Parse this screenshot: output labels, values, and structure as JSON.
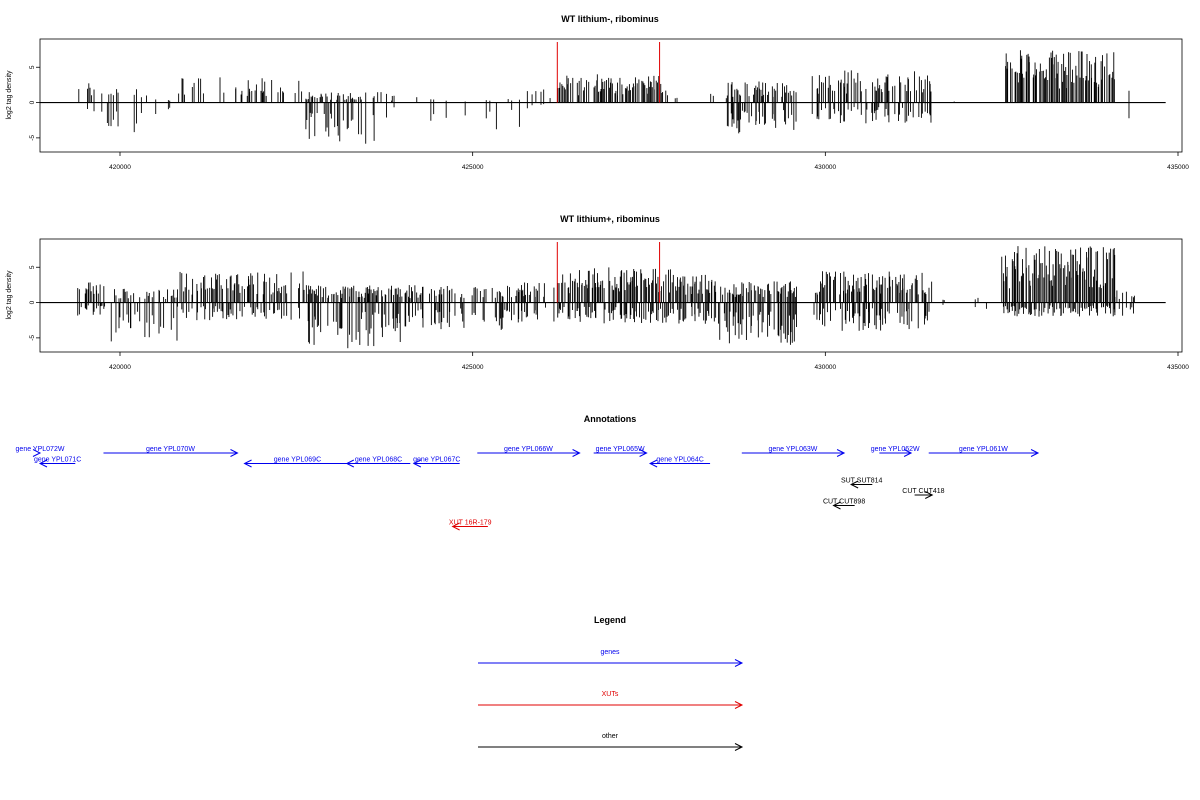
{
  "chart_data": [
    {
      "type": "bar",
      "title": "WT lithium-, ribominus",
      "xlabel": "",
      "ylabel": "log2 tag density",
      "xlim": [
        419400,
        435000
      ],
      "ylim": [
        -7,
        9
      ],
      "xticks": [
        420000,
        425000,
        430000,
        435000
      ],
      "xtick_labels": [
        "420000",
        "425000",
        "430000",
        "435000"
      ],
      "yticks": [
        -5,
        0,
        5
      ],
      "ytick_labels": [
        "-5",
        "0",
        "5"
      ],
      "markers": [
        426200,
        427650
      ],
      "marker_color": "#e00000",
      "bar_color": "#000000",
      "data_extent": [
        419400,
        434400
      ],
      "segments": [
        {
          "x0": 419400,
          "x1": 419800,
          "density": 0.25,
          "pos": 3,
          "neg": 2
        },
        {
          "x0": 419800,
          "x1": 420300,
          "density": 0.35,
          "pos": 2,
          "neg": 4.5
        },
        {
          "x0": 420300,
          "x1": 420800,
          "density": 0.1,
          "pos": 1,
          "neg": 2
        },
        {
          "x0": 420800,
          "x1": 422600,
          "density": 0.3,
          "pos": 3.7,
          "neg": 0
        },
        {
          "x0": 422600,
          "x1": 423800,
          "density": 0.55,
          "pos": 1.5,
          "neg": 6
        },
        {
          "x0": 423800,
          "x1": 424400,
          "density": 0.1,
          "pos": 1,
          "neg": 3
        },
        {
          "x0": 424400,
          "x1": 425700,
          "density": 0.15,
          "pos": 0.5,
          "neg": 4
        },
        {
          "x0": 425700,
          "x1": 426200,
          "density": 0.15,
          "pos": 2.5,
          "neg": 1
        },
        {
          "x0": 426200,
          "x1": 427700,
          "density": 0.7,
          "pos": 4,
          "neg": 0
        },
        {
          "x0": 427700,
          "x1": 428600,
          "density": 0.1,
          "pos": 2,
          "neg": 0
        },
        {
          "x0": 428600,
          "x1": 429600,
          "density": 0.6,
          "pos": 3,
          "neg": 4.5
        },
        {
          "x0": 429800,
          "x1": 431500,
          "density": 0.6,
          "pos": 4.7,
          "neg": 3
        },
        {
          "x0": 431500,
          "x1": 432300,
          "density": 0.05,
          "pos": 0.5,
          "neg": 0
        },
        {
          "x0": 432500,
          "x1": 434100,
          "density": 1.0,
          "pos": 7.5,
          "neg": 0
        },
        {
          "x0": 434100,
          "x1": 434400,
          "density": 0.1,
          "pos": 2,
          "neg": 3
        }
      ]
    },
    {
      "type": "bar",
      "title": "WT lithium+, ribominus",
      "xlabel": "",
      "ylabel": "log2 tag density",
      "xlim": [
        419400,
        435000
      ],
      "ylim": [
        -7,
        9
      ],
      "xticks": [
        420000,
        425000,
        430000,
        435000
      ],
      "xtick_labels": [
        "420000",
        "425000",
        "430000",
        "435000"
      ],
      "yticks": [
        -5,
        0,
        5
      ],
      "ytick_labels": [
        "-5",
        "0",
        "5"
      ],
      "markers": [
        426200,
        427650
      ],
      "marker_color": "#e00000",
      "bar_color": "#000000",
      "data_extent": [
        419400,
        434400
      ],
      "segments": [
        {
          "x0": 419400,
          "x1": 419800,
          "density": 0.6,
          "pos": 3,
          "neg": 2
        },
        {
          "x0": 419800,
          "x1": 420800,
          "density": 0.6,
          "pos": 2,
          "neg": 5.5
        },
        {
          "x0": 420800,
          "x1": 422600,
          "density": 0.6,
          "pos": 4.5,
          "neg": 2.5
        },
        {
          "x0": 422600,
          "x1": 424000,
          "density": 0.8,
          "pos": 2.5,
          "neg": 6.5
        },
        {
          "x0": 424000,
          "x1": 425700,
          "density": 0.5,
          "pos": 2.5,
          "neg": 4
        },
        {
          "x0": 425700,
          "x1": 426200,
          "density": 0.5,
          "pos": 3,
          "neg": 3
        },
        {
          "x0": 426200,
          "x1": 427800,
          "density": 0.9,
          "pos": 5,
          "neg": 3
        },
        {
          "x0": 427800,
          "x1": 428500,
          "density": 0.7,
          "pos": 4,
          "neg": 3
        },
        {
          "x0": 428500,
          "x1": 429600,
          "density": 0.9,
          "pos": 3,
          "neg": 6
        },
        {
          "x0": 429800,
          "x1": 431500,
          "density": 0.8,
          "pos": 4.5,
          "neg": 4
        },
        {
          "x0": 431500,
          "x1": 432300,
          "density": 0.1,
          "pos": 1,
          "neg": 1
        },
        {
          "x0": 432500,
          "x1": 434100,
          "density": 1.0,
          "pos": 8,
          "neg": 2
        },
        {
          "x0": 434100,
          "x1": 434400,
          "density": 0.5,
          "pos": 2,
          "neg": 2
        }
      ]
    }
  ],
  "annotations": {
    "title": "Annotations",
    "colors": {
      "gene": "#0000ee",
      "xut": "#e00000",
      "other": "#000000"
    },
    "features": [
      {
        "label": "gene YPL072W",
        "type": "gene",
        "strand": "+",
        "start": 419400,
        "end": 420000,
        "row": 0
      },
      {
        "label": "gene YPL071C",
        "type": "gene",
        "strand": "-",
        "start": 419950,
        "end": 420500,
        "row": 1
      },
      {
        "label": "gene YPL070W",
        "type": "gene",
        "strand": "+",
        "start": 420900,
        "end": 422800,
        "row": 0
      },
      {
        "label": "gene YPL069C",
        "type": "gene",
        "strand": "-",
        "start": 422900,
        "end": 424400,
        "row": 1
      },
      {
        "label": "gene YPL068C",
        "type": "gene",
        "strand": "-",
        "start": 424350,
        "end": 425250,
        "row": 1
      },
      {
        "label": "gene YPL067C",
        "type": "gene",
        "strand": "-",
        "start": 425300,
        "end": 425950,
        "row": 1
      },
      {
        "label": "gene YPL066W",
        "type": "gene",
        "strand": "+",
        "start": 426200,
        "end": 427650,
        "row": 0
      },
      {
        "label": "gene YPL065W",
        "type": "gene",
        "strand": "+",
        "start": 427850,
        "end": 428600,
        "row": 0
      },
      {
        "label": "gene YPL064C",
        "type": "gene",
        "strand": "-",
        "start": 428650,
        "end": 429500,
        "row": 1
      },
      {
        "label": "gene YPL063W",
        "type": "gene",
        "strand": "+",
        "start": 429950,
        "end": 431400,
        "row": 0
      },
      {
        "label": "gene YPL062W",
        "type": "gene",
        "strand": "+",
        "start": 431900,
        "end": 432350,
        "row": 0
      },
      {
        "label": "gene YPL061W",
        "type": "gene",
        "strand": "+",
        "start": 432600,
        "end": 434150,
        "row": 0
      },
      {
        "label": "SUT SUT814",
        "type": "other",
        "strand": "-",
        "start": 431500,
        "end": 431800,
        "row": 3
      },
      {
        "label": "CUT CUT418",
        "type": "other",
        "strand": "+",
        "start": 432400,
        "end": 432650,
        "row": 4
      },
      {
        "label": "CUT CUT898",
        "type": "other",
        "strand": "-",
        "start": 431250,
        "end": 431550,
        "row": 5
      },
      {
        "label": "XUT 16R-179",
        "type": "xut",
        "strand": "-",
        "start": 425850,
        "end": 426350,
        "row": 7
      }
    ]
  },
  "legend": {
    "title": "Legend",
    "items": [
      {
        "label": "genes",
        "color": "#0000ee"
      },
      {
        "label": "XUTs",
        "color": "#e00000"
      },
      {
        "label": "other",
        "color": "#000000"
      }
    ]
  }
}
